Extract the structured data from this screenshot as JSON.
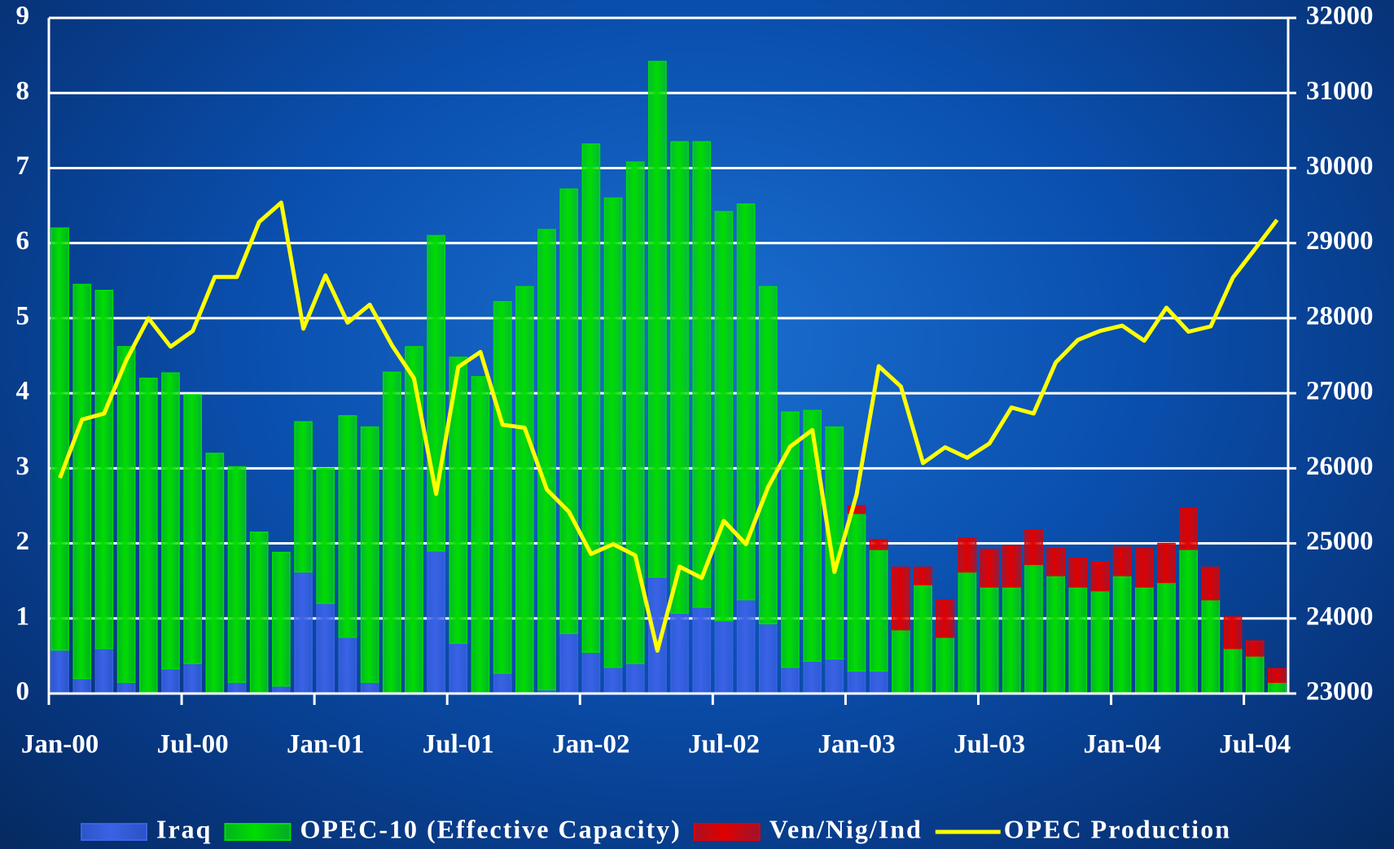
{
  "chart_data": {
    "type": "bar",
    "stacked": true,
    "categories": [
      "Jan-00",
      null,
      null,
      null,
      null,
      null,
      "Jul-00",
      null,
      null,
      null,
      null,
      null,
      "Jan-01",
      null,
      null,
      null,
      null,
      null,
      "Jul-01",
      null,
      null,
      null,
      null,
      null,
      "Jan-02",
      null,
      null,
      null,
      null,
      null,
      "Jul-02",
      null,
      null,
      null,
      null,
      null,
      "Jan-03",
      null,
      null,
      null,
      null,
      null,
      "Jul-03",
      null,
      null,
      null,
      null,
      null,
      "Jan-04",
      null,
      null,
      null,
      null,
      null,
      "Jul-04",
      null
    ],
    "series": [
      {
        "name": "Iraq",
        "color": "#3a62e6",
        "values": [
          0.58,
          0.2,
          0.6,
          0.15,
          0.02,
          0.33,
          0.4,
          0,
          0.15,
          0,
          0.1,
          1.62,
          1.2,
          0.75,
          0.15,
          0,
          0,
          1.9,
          0.67,
          0,
          0.27,
          0,
          0.05,
          0.8,
          0.55,
          0.35,
          0.4,
          1.55,
          1.07,
          1.15,
          0.97,
          1.25,
          0.93,
          0.35,
          0.43,
          0.46,
          0.3,
          0.3,
          0,
          0,
          0,
          0,
          0,
          0,
          0,
          0,
          0,
          0,
          0,
          0,
          0,
          0,
          0,
          0,
          0,
          0
        ]
      },
      {
        "name": "OPEC-10 (Effective Capacity)",
        "color": "#00dd00",
        "values": [
          5.62,
          5.25,
          4.77,
          4.47,
          4.18,
          3.94,
          3.58,
          3.2,
          2.87,
          2.15,
          1.78,
          2.0,
          1.8,
          2.95,
          3.4,
          4.28,
          4.62,
          4.2,
          3.81,
          4.22,
          4.95,
          5.42,
          6.13,
          5.92,
          6.77,
          6.25,
          6.68,
          6.87,
          6.28,
          6.2,
          5.45,
          5.27,
          4.49,
          3.4,
          3.34,
          3.09,
          2.1,
          1.62,
          0.85,
          1.45,
          0.75,
          1.62,
          1.42,
          1.42,
          1.72,
          1.57,
          1.42,
          1.37,
          1.57,
          1.42,
          1.48,
          1.92,
          1.25,
          0.6,
          0.5,
          0.15
        ]
      },
      {
        "name": "Ven/Nig/Ind",
        "color": "#e00000",
        "values": [
          0,
          0,
          0,
          0,
          0,
          0,
          0,
          0,
          0,
          0,
          0,
          0,
          0,
          0,
          0,
          0,
          0,
          0,
          0,
          0,
          0,
          0,
          0,
          0,
          0,
          0,
          0,
          0,
          0,
          0,
          0,
          0,
          0,
          0,
          0,
          0,
          0.1,
          0.13,
          0.83,
          0.23,
          0.5,
          0.45,
          0.5,
          0.55,
          0.46,
          0.36,
          0.38,
          0.38,
          0.38,
          0.51,
          0.52,
          0.55,
          0.43,
          0.42,
          0.2,
          0.18
        ]
      },
      {
        "name": "OPEC Production",
        "type": "line",
        "axis": "y2",
        "color": "#ffff00",
        "values": [
          25870,
          26650,
          26730,
          27440,
          28000,
          27620,
          27830,
          28550,
          28550,
          29280,
          29540,
          27860,
          28570,
          27940,
          28180,
          27640,
          27200,
          25660,
          27350,
          27550,
          26580,
          26540,
          25720,
          25420,
          24860,
          24990,
          24840,
          23570,
          24690,
          24540,
          25300,
          24990,
          25750,
          26290,
          26510,
          24620,
          25650,
          27360,
          27090,
          26070,
          26280,
          26140,
          26330,
          26810,
          26730,
          27410,
          27710,
          27830,
          27900,
          27700,
          28140,
          27820,
          27890,
          28540,
          28920,
          29310
        ]
      }
    ],
    "ylim": [
      0,
      9
    ],
    "yticks": [
      0,
      1,
      2,
      3,
      4,
      5,
      6,
      7,
      8,
      9
    ],
    "y2lim": [
      23000,
      32000
    ],
    "y2ticks": [
      23000,
      24000,
      25000,
      26000,
      27000,
      28000,
      29000,
      30000,
      31000,
      32000
    ],
    "grid": true,
    "legend": "bottom"
  }
}
